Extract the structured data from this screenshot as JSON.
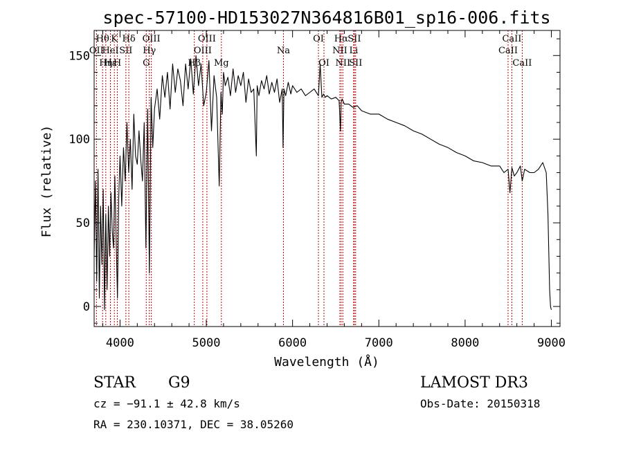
{
  "chart_data": {
    "type": "line",
    "title": "spec-57100-HD153027N364816B01_sp16-006.fits",
    "xlabel": "Wavelength (Å)",
    "ylabel": "Flux (relative)",
    "xlim": [
      3700,
      9100
    ],
    "ylim": [
      -12,
      165
    ],
    "xticks": [
      4000,
      5000,
      6000,
      7000,
      8000,
      9000
    ],
    "yticks": [
      0,
      50,
      100,
      150
    ],
    "xtick_labels": [
      "4000",
      "5000",
      "6000",
      "7000",
      "8000",
      "9000"
    ],
    "ytick_labels": [
      "0",
      "50",
      "100",
      "150"
    ],
    "grid": false,
    "series": [
      {
        "name": "flux",
        "x": [
          3700,
          3715,
          3730,
          3745,
          3760,
          3775,
          3790,
          3805,
          3820,
          3835,
          3850,
          3865,
          3880,
          3895,
          3910,
          3925,
          3940,
          3955,
          3970,
          3985,
          4000,
          4020,
          4040,
          4060,
          4080,
          4100,
          4120,
          4140,
          4160,
          4180,
          4200,
          4220,
          4240,
          4260,
          4280,
          4300,
          4320,
          4340,
          4360,
          4380,
          4400,
          4430,
          4460,
          4490,
          4520,
          4550,
          4580,
          4610,
          4640,
          4670,
          4700,
          4730,
          4760,
          4790,
          4820,
          4850,
          4880,
          4910,
          4940,
          4970,
          5000,
          5030,
          5060,
          5090,
          5120,
          5150,
          5170,
          5185,
          5200,
          5220,
          5250,
          5280,
          5310,
          5340,
          5370,
          5400,
          5430,
          5460,
          5490,
          5520,
          5550,
          5580,
          5590,
          5610,
          5640,
          5670,
          5700,
          5730,
          5760,
          5790,
          5820,
          5850,
          5880,
          5890,
          5900,
          5920,
          5950,
          5980,
          6000,
          6050,
          6100,
          6150,
          6200,
          6250,
          6300,
          6320,
          6340,
          6360,
          6380,
          6400,
          6450,
          6500,
          6540,
          6555,
          6563,
          6575,
          6600,
          6650,
          6700,
          6750,
          6800,
          6900,
          7000,
          7100,
          7200,
          7300,
          7400,
          7500,
          7600,
          7700,
          7800,
          7900,
          8000,
          8100,
          8200,
          8300,
          8400,
          8450,
          8498,
          8520,
          8542,
          8570,
          8600,
          8640,
          8662,
          8690,
          8750,
          8800,
          8850,
          8900,
          8940,
          8960,
          8980,
          8990,
          9000
        ],
        "y": [
          30,
          75,
          15,
          82,
          5,
          60,
          25,
          70,
          -2,
          55,
          10,
          60,
          30,
          68,
          45,
          35,
          78,
          40,
          5,
          65,
          90,
          60,
          95,
          75,
          110,
          80,
          100,
          70,
          115,
          90,
          85,
          105,
          88,
          75,
          110,
          35,
          118,
          20,
          125,
          95,
          118,
          130,
          112,
          138,
          125,
          140,
          118,
          145,
          128,
          142,
          135,
          120,
          145,
          130,
          148,
          127,
          150,
          132,
          145,
          120,
          128,
          147,
          105,
          138,
          125,
          72,
          128,
          115,
          140,
          132,
          137,
          126,
          142,
          128,
          138,
          132,
          140,
          122,
          136,
          128,
          130,
          90,
          132,
          126,
          135,
          130,
          138,
          127,
          134,
          128,
          136,
          122,
          130,
          95,
          130,
          126,
          134,
          127,
          132,
          128,
          130,
          126,
          128,
          130,
          126,
          145,
          125,
          127,
          125,
          126,
          124,
          125,
          123,
          105,
          122,
          124,
          121,
          121,
          119,
          120,
          117,
          115,
          115,
          112,
          110,
          108,
          105,
          103,
          100,
          97,
          95,
          92,
          90,
          87,
          86,
          84,
          84,
          80,
          82,
          68,
          83,
          78,
          80,
          84,
          75,
          82,
          80,
          80,
          82,
          86,
          80,
          55,
          10,
          0,
          -2
        ]
      }
    ],
    "spectral_lines": [
      {
        "label": "Hθ",
        "x": 3798,
        "row": 0
      },
      {
        "label": "OII",
        "x": 3727,
        "row": 1
      },
      {
        "label": "Hη",
        "x": 3835,
        "row": 2
      },
      {
        "label": "Hε",
        "x": 3889,
        "row": 2
      },
      {
        "label": "HeI",
        "x": 3889,
        "row": 1
      },
      {
        "label": "K",
        "x": 3934,
        "row": 0
      },
      {
        "label": "SII",
        "x": 4068,
        "row": 1
      },
      {
        "label": "H",
        "x": 3969,
        "row": 2
      },
      {
        "label": "Hδ",
        "x": 4102,
        "row": 0
      },
      {
        "label": "OIII",
        "x": 4363,
        "row": 0
      },
      {
        "label": "Hγ",
        "x": 4340,
        "row": 1
      },
      {
        "label": "G",
        "x": 4304,
        "row": 2
      },
      {
        "label": "Hβ",
        "x": 4861,
        "row": 2
      },
      {
        "label": "OIII",
        "x": 4959,
        "row": 1
      },
      {
        "label": "OIII",
        "x": 5007,
        "row": 0
      },
      {
        "label": "Mg",
        "x": 5175,
        "row": 2
      },
      {
        "label": "Na",
        "x": 5894,
        "row": 1
      },
      {
        "label": "OI",
        "x": 6300,
        "row": 0
      },
      {
        "label": "OI",
        "x": 6364,
        "row": 2
      },
      {
        "label": "Hα",
        "x": 6563,
        "row": 0
      },
      {
        "label": "NII",
        "x": 6548,
        "row": 1
      },
      {
        "label": "NII",
        "x": 6583,
        "row": 2
      },
      {
        "label": "SII",
        "x": 6716,
        "row": 0
      },
      {
        "label": "Li",
        "x": 6708,
        "row": 1
      },
      {
        "label": "SII",
        "x": 6731,
        "row": 2
      },
      {
        "label": "CaII",
        "x": 8498,
        "row": 1
      },
      {
        "label": "CaII",
        "x": 8542,
        "row": 0
      },
      {
        "label": "CaII",
        "x": 8662,
        "row": 2
      }
    ],
    "line_color": "#c00000"
  },
  "info": {
    "object_class": "STAR",
    "subclass": "G9",
    "survey": "LAMOST DR3",
    "cz_line": "cz = −91.1 ± 42.8 km/s",
    "obs_date": "Obs-Date: 20150318",
    "coords": "RA = 230.10371, DEC =  38.05260"
  }
}
